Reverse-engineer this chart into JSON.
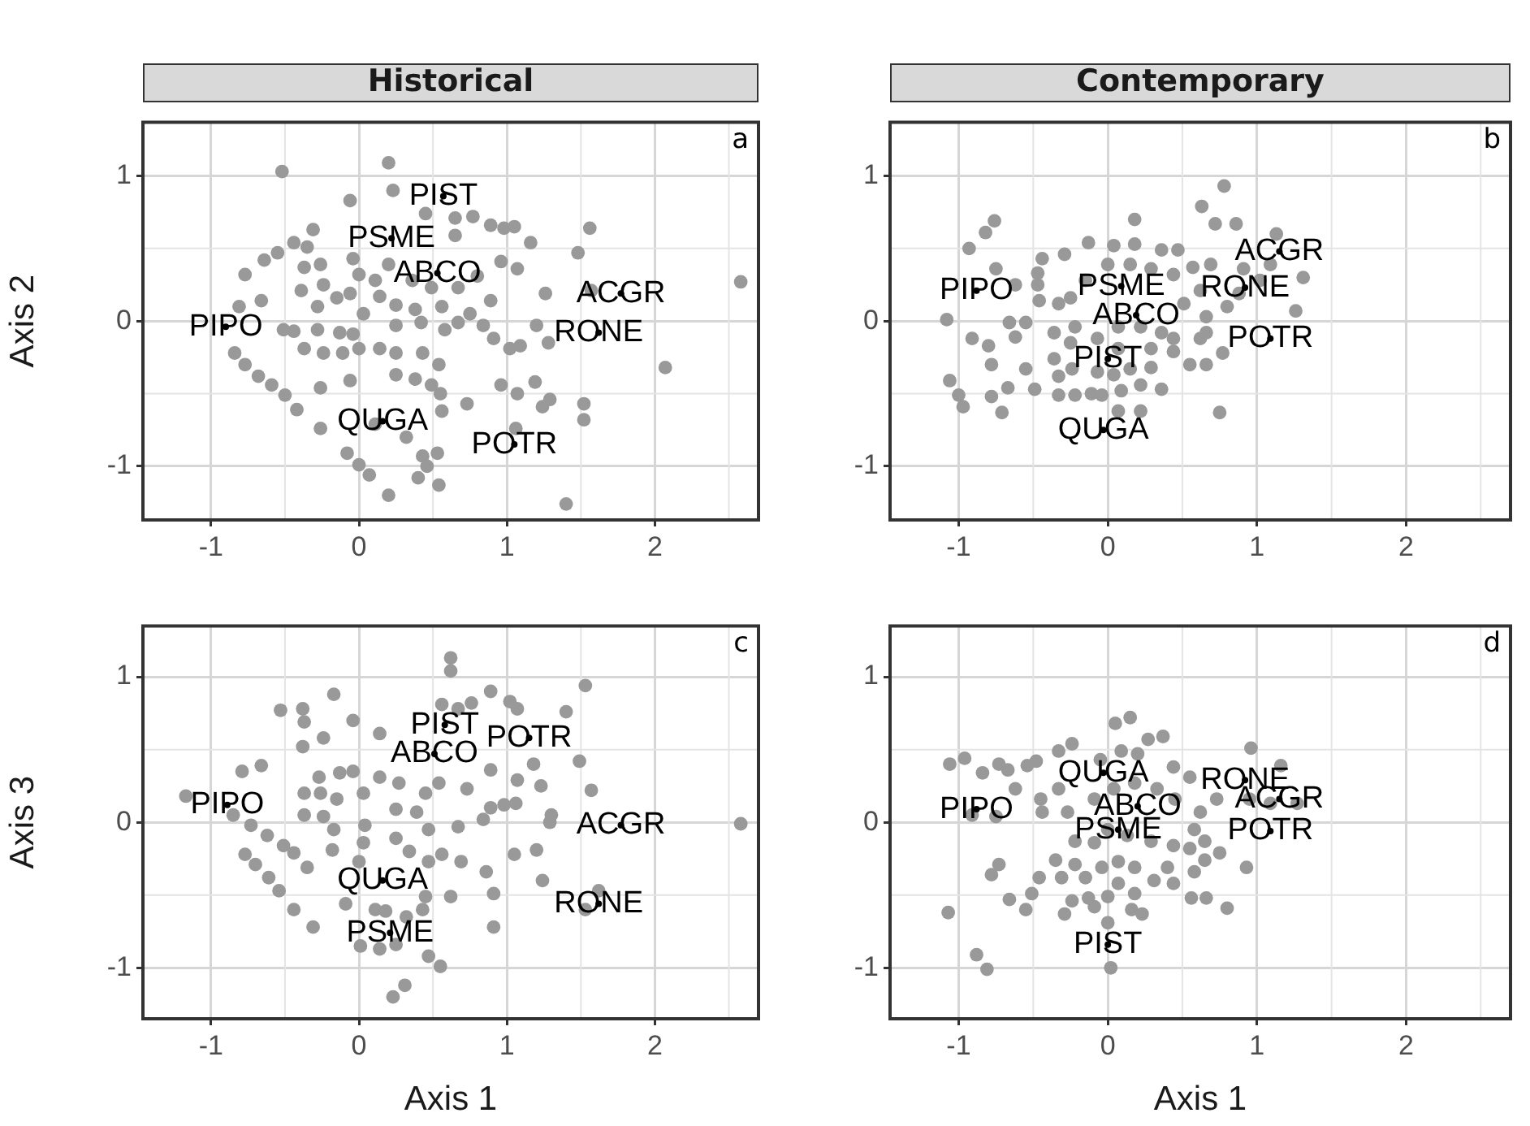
{
  "chart_data": [
    {
      "type": "scatter",
      "title": "Historical",
      "ylabel": "Axis 2",
      "marker": "circle",
      "grid": true,
      "xlim": [
        -1.46,
        2.7
      ],
      "ylim": [
        -1.37,
        1.37
      ],
      "xticks": [
        -1,
        0,
        1,
        2
      ],
      "yticks": [
        -1,
        0,
        1
      ],
      "annotations": [
        "a"
      ],
      "series": [
        {
          "color": "#999999",
          "x": [
            -0.52,
            0.2,
            -0.06,
            0.23,
            0.45,
            0.65,
            0.77,
            0.89,
            0.98,
            1.05,
            1.56,
            1.16,
            1.48,
            2.58,
            -0.31,
            -0.44,
            -0.55,
            -0.64,
            -0.77,
            -0.35,
            -0.37,
            -0.39,
            -0.24,
            -0.26,
            -0.04,
            0,
            0.11,
            0.65,
            0.96,
            1.07,
            0.67,
            0.89,
            1.26,
            1.57,
            -0.66,
            -0.81,
            -0.51,
            -0.44,
            -0.28,
            -0.15,
            -0.06,
            0.14,
            0.25,
            0.38,
            0.56,
            -0.28,
            -0.13,
            -0.04,
            0.03,
            0.25,
            0.42,
            0.58,
            0.67,
            0.75,
            0.84,
            0.91,
            1.02,
            1.09,
            1.2,
            1.28,
            2.07,
            -0.37,
            -0.24,
            -0.11,
            0,
            0.14,
            0.25,
            0.43,
            0.54,
            -0.84,
            -0.77,
            -0.68,
            -0.59,
            -0.5,
            -0.42,
            -0.26,
            -0.06,
            0.25,
            0.38,
            0.49,
            0.55,
            0.73,
            0.96,
            1.07,
            1.19,
            1.29,
            1.24,
            1.52,
            1.52,
            -0.26,
            0.11,
            0.32,
            0.56,
            1.06,
            -0.08,
            0,
            0.07,
            0.43,
            0.53,
            0.46,
            0.4,
            0.54,
            0.2,
            1.4,
            0.2,
            0.36,
            0.49,
            0.8
          ],
          "values": [
            1.03,
            1.09,
            0.83,
            0.9,
            0.74,
            0.71,
            0.72,
            0.66,
            0.64,
            0.65,
            0.64,
            0.54,
            0.47,
            0.27,
            0.63,
            0.54,
            0.47,
            0.42,
            0.32,
            0.51,
            0.37,
            0.21,
            0.25,
            0.39,
            0.43,
            0.32,
            0.28,
            0.59,
            0.41,
            0.36,
            0.23,
            0.14,
            0.19,
            0.21,
            0.14,
            0.1,
            -0.06,
            -0.07,
            0.1,
            0.16,
            0.19,
            0.17,
            0.11,
            0.08,
            0.1,
            -0.06,
            -0.08,
            -0.09,
            0.05,
            -0.03,
            -0.01,
            -0.06,
            -0.01,
            0.05,
            -0.03,
            -0.12,
            -0.19,
            -0.17,
            -0.03,
            -0.15,
            -0.32,
            -0.19,
            -0.22,
            -0.22,
            -0.19,
            -0.19,
            -0.22,
            -0.22,
            -0.3,
            -0.22,
            -0.3,
            -0.38,
            -0.44,
            -0.51,
            -0.61,
            -0.46,
            -0.41,
            -0.37,
            -0.4,
            -0.44,
            -0.5,
            -0.57,
            -0.44,
            -0.5,
            -0.42,
            -0.54,
            -0.59,
            -0.57,
            -0.68,
            -0.74,
            -0.71,
            -0.8,
            -0.62,
            -0.74,
            -0.91,
            -0.99,
            -1.06,
            -0.93,
            -0.91,
            -1,
            -1.08,
            -1.13,
            -1.2,
            -1.26,
            0.39,
            0.28,
            0.23,
            0.31
          ]
        },
        {
          "color": "#000000",
          "x": [
            0.57,
            0.22,
            0.53,
            -0.9,
            1.77,
            1.62,
            0.16,
            1.05
          ],
          "values": [
            0.86,
            0.57,
            0.33,
            -0.04,
            0.19,
            -0.08,
            -0.69,
            -0.85
          ],
          "value_labels": [
            "PIST",
            "PSME",
            "ABCO",
            "PIPO",
            "ACGR",
            "RONE",
            "QUGA",
            "POTR"
          ]
        }
      ]
    },
    {
      "type": "scatter",
      "title": "Contemporary",
      "marker": "circle",
      "grid": true,
      "xlim": [
        -1.46,
        2.7
      ],
      "ylim": [
        -1.37,
        1.37
      ],
      "xticks": [
        -1,
        0,
        1,
        2
      ],
      "yticks": [
        -1,
        0,
        1
      ],
      "annotations": [
        "b"
      ],
      "series": [
        {
          "color": "#999999",
          "x": [
            0.78,
            0.63,
            0.72,
            0.86,
            0.18,
            1.13,
            -0.76,
            -0.82,
            -0.93,
            0.36,
            0.47,
            0.69,
            0.57,
            1.31,
            1.26,
            -1.08,
            -0.75,
            -0.47,
            -0.29,
            -0.13,
            0.04,
            0.18,
            -0.44,
            -0.46,
            -0.33,
            -0.66,
            -0.55,
            -0.91,
            -0.8,
            -0.78,
            -0.62,
            -1.06,
            -1,
            -0.97,
            -0.71,
            -0.78,
            -0.67,
            -0.55,
            -0.49,
            -0.33,
            -0.22,
            -0.11,
            -0.04,
            0.09,
            0.22,
            0.36,
            0.75,
            0.07,
            0.22,
            -0.33,
            -0.36,
            -0.24,
            -0.07,
            0.04,
            0.15,
            0.29,
            0.44,
            0.55,
            0.66,
            0.77,
            0.44,
            0.62,
            0.66,
            0.8,
            0.88,
            1.02,
            1.09,
            0.91,
            0,
            0.15,
            0.29,
            0.44,
            -0.22,
            -0.07,
            0.07,
            0.22,
            0.36,
            -0.25,
            0.07,
            0.29,
            -0.15,
            -0.25,
            -0.36,
            -0.47,
            -0.62,
            0.51,
            0.62,
            0.66
          ],
          "values": [
            0.93,
            0.79,
            0.67,
            0.67,
            0.7,
            0.6,
            0.69,
            0.61,
            0.5,
            0.49,
            0.49,
            0.39,
            0.37,
            0.3,
            0.07,
            0.01,
            0.36,
            0.33,
            0.46,
            0.54,
            0.52,
            0.53,
            0.43,
            0.14,
            0.12,
            -0.01,
            -0.01,
            -0.12,
            -0.17,
            -0.3,
            -0.11,
            -0.41,
            -0.51,
            -0.59,
            -0.63,
            -0.52,
            -0.46,
            -0.33,
            -0.47,
            -0.51,
            -0.51,
            -0.5,
            -0.51,
            -0.48,
            -0.44,
            -0.47,
            -0.63,
            -0.62,
            -0.62,
            -0.38,
            -0.26,
            -0.33,
            -0.35,
            -0.37,
            -0.33,
            -0.32,
            -0.21,
            -0.3,
            -0.3,
            -0.22,
            -0.12,
            -0.12,
            0.03,
            0.1,
            0.19,
            0.28,
            0.39,
            0.36,
            0.39,
            0.39,
            0.36,
            0.32,
            -0.04,
            -0.12,
            -0.04,
            -0.04,
            -0.08,
            -0.15,
            -0.19,
            -0.19,
            0.28,
            0.16,
            -0.08,
            0.25,
            0.25,
            0.12,
            0.21,
            -0.08
          ]
        },
        {
          "color": "#000000",
          "x": [
            -0.88,
            0.09,
            0.92,
            1.15,
            0.19,
            1.09,
            0,
            -0.03
          ],
          "values": [
            0.21,
            0.24,
            0.23,
            0.48,
            0.04,
            -0.12,
            -0.26,
            -0.75
          ],
          "value_labels": [
            "PIPO",
            "PSME",
            "RONE",
            "ACGR",
            "ABCO",
            "POTR",
            "PIST",
            "QUGA"
          ]
        }
      ]
    },
    {
      "type": "scatter",
      "xlabel": "Axis 1",
      "ylabel": "Axis 3",
      "marker": "circle",
      "grid": true,
      "xlim": [
        -1.46,
        2.7
      ],
      "ylim": [
        -1.35,
        1.35
      ],
      "xticks": [
        -1,
        0,
        1,
        2
      ],
      "yticks": [
        -1,
        0,
        1
      ],
      "annotations": [
        "c"
      ],
      "series": [
        {
          "color": "#999999",
          "x": [
            0.62,
            0.62,
            1.53,
            0.89,
            -0.17,
            0.56,
            0.67,
            0.76,
            1.02,
            1.07,
            1.4,
            -0.53,
            -0.38,
            -0.37,
            -0.04,
            0.14,
            -0.24,
            -0.38,
            1.18,
            1.49,
            0.89,
            1.07,
            1.23,
            1.57,
            0.98,
            1.06,
            0.89,
            1.3,
            1.29,
            2.58,
            -0.79,
            -0.66,
            -1.17,
            -0.85,
            -0.73,
            -0.62,
            -0.51,
            -0.44,
            -0.77,
            -0.7,
            -0.61,
            -0.54,
            -0.44,
            -0.31,
            -0.35,
            -0.26,
            -0.37,
            -0.27,
            -0.13,
            -0.04,
            0.03,
            -0.15,
            -0.37,
            -0.24,
            -0.17,
            -0.18,
            0.04,
            0.14,
            0.27,
            0.25,
            0.39,
            0.45,
            0.54,
            0.73,
            0.84,
            0.67,
            0.47,
            0.25,
            0.03,
            0,
            0.34,
            0.47,
            0.56,
            0.69,
            1.05,
            1.2,
            0.86,
            1.24,
            0.91,
            1.62,
            1.53,
            0.62,
            0.45,
            0.11,
            -0.09,
            0.18,
            0.32,
            0.43,
            0.91,
            0.14,
            0.25,
            0.47,
            0.55,
            0.01,
            0.31,
            0.23
          ],
          "values": [
            1.13,
            1.04,
            0.94,
            0.9,
            0.88,
            0.81,
            0.78,
            0.82,
            0.83,
            0.78,
            0.76,
            0.77,
            0.78,
            0.69,
            0.7,
            0.61,
            0.58,
            0.52,
            0.4,
            0.42,
            0.36,
            0.29,
            0.25,
            0.22,
            0.12,
            0.13,
            0.1,
            0.05,
            0,
            -0.01,
            0.35,
            0.39,
            0.18,
            0.05,
            -0.02,
            -0.09,
            -0.16,
            -0.21,
            -0.22,
            -0.29,
            -0.38,
            -0.47,
            -0.6,
            -0.72,
            -0.31,
            0.2,
            0.2,
            0.31,
            0.34,
            0.35,
            0.2,
            0.16,
            0.05,
            0.04,
            -0.05,
            -0.19,
            -0.02,
            0.31,
            0.27,
            0.09,
            0.07,
            0.2,
            0.27,
            0.23,
            0.02,
            -0.03,
            -0.05,
            -0.11,
            -0.14,
            -0.27,
            -0.2,
            -0.27,
            -0.22,
            -0.27,
            -0.22,
            -0.19,
            -0.34,
            -0.4,
            -0.49,
            -0.47,
            -0.6,
            -0.51,
            -0.51,
            -0.6,
            -0.56,
            -0.61,
            -0.65,
            -0.6,
            -0.72,
            -0.87,
            -0.84,
            -0.92,
            -0.99,
            -0.85,
            -1.12,
            -1.2
          ]
        },
        {
          "color": "#000000",
          "x": [
            0.58,
            1.15,
            0.51,
            -0.89,
            1.77,
            0.16,
            1.62,
            0.21
          ],
          "values": [
            0.67,
            0.58,
            0.47,
            0.12,
            -0.02,
            -0.4,
            -0.56,
            -0.76
          ],
          "value_labels": [
            "PIST",
            "POTR",
            "ABCO",
            "PIPO",
            "ACGR",
            "QUGA",
            "RONE",
            "PSME"
          ]
        }
      ]
    },
    {
      "type": "scatter",
      "xlabel": "Axis 1",
      "marker": "circle",
      "grid": true,
      "xlim": [
        -1.46,
        2.7
      ],
      "ylim": [
        -1.35,
        1.35
      ],
      "xticks": [
        -1,
        0,
        1,
        2
      ],
      "yticks": [
        -1,
        0,
        1
      ],
      "annotations": [
        "d"
      ],
      "series": [
        {
          "color": "#999999",
          "x": [
            0.05,
            0.15,
            0.37,
            0.27,
            -0.24,
            -0.33,
            0.96,
            1.16,
            -0.96,
            -1.06,
            -0.84,
            -0.73,
            -0.67,
            -0.54,
            -0.48,
            -0.05,
            0.09,
            0.2,
            0.44,
            0.55,
            -0.62,
            -0.45,
            -0.44,
            -0.33,
            -0.91,
            -0.75,
            -0.27,
            -0.09,
            0.04,
            0.18,
            0.33,
            0.45,
            0.62,
            0.73,
            0.95,
            1.09,
            1.27,
            0.58,
            0.65,
            0.75,
            0.55,
            0.44,
            0.29,
            0.13,
            0,
            -0.09,
            -0.22,
            0.93,
            0.65,
            0.58,
            0.44,
            0.31,
            0.4,
            0.18,
            0.07,
            -0.04,
            -0.22,
            -0.35,
            -0.73,
            -0.78,
            -0.46,
            -0.31,
            -0.15,
            0.07,
            0.18,
            0,
            -0.13,
            -0.24,
            -0.51,
            -0.66,
            -0.55,
            -0.29,
            -0.09,
            0.16,
            0.23,
            0.56,
            0.66,
            0.8,
            0,
            -1.07,
            -0.88,
            -0.81,
            0.02
          ],
          "values": [
            0.68,
            0.72,
            0.59,
            0.57,
            0.54,
            0.49,
            0.51,
            0.39,
            0.44,
            0.4,
            0.34,
            0.4,
            0.36,
            0.39,
            0.42,
            0.43,
            0.49,
            0.47,
            0.38,
            0.31,
            0.23,
            0.16,
            0.07,
            0.23,
            0.05,
            0.04,
            0.07,
            0.16,
            0.23,
            0.27,
            0.23,
            0.16,
            0.07,
            0.16,
            0.16,
            0.13,
            0.13,
            -0.05,
            -0.13,
            -0.21,
            -0.18,
            -0.16,
            -0.13,
            -0.09,
            -0.05,
            -0.14,
            -0.13,
            -0.31,
            -0.26,
            -0.34,
            -0.42,
            -0.4,
            -0.31,
            -0.31,
            -0.27,
            -0.31,
            -0.29,
            -0.26,
            -0.29,
            -0.36,
            -0.38,
            -0.38,
            -0.38,
            -0.42,
            -0.49,
            -0.51,
            -0.52,
            -0.54,
            -0.49,
            -0.53,
            -0.6,
            -0.63,
            -0.58,
            -0.6,
            -0.63,
            -0.52,
            -0.52,
            -0.59,
            -0.69,
            -0.62,
            -0.91,
            -1.01,
            -1
          ]
        },
        {
          "color": "#000000",
          "x": [
            -0.03,
            0.92,
            1.15,
            -0.88,
            0.2,
            0.07,
            1.09,
            0
          ],
          "values": [
            0.34,
            0.29,
            0.16,
            0.09,
            0.11,
            -0.05,
            -0.06,
            -0.84
          ],
          "value_labels": [
            "QUGA",
            "RONE",
            "ACGR",
            "PIPO",
            "ABCO",
            "PSME",
            "POTR",
            "PIST"
          ]
        }
      ]
    }
  ]
}
